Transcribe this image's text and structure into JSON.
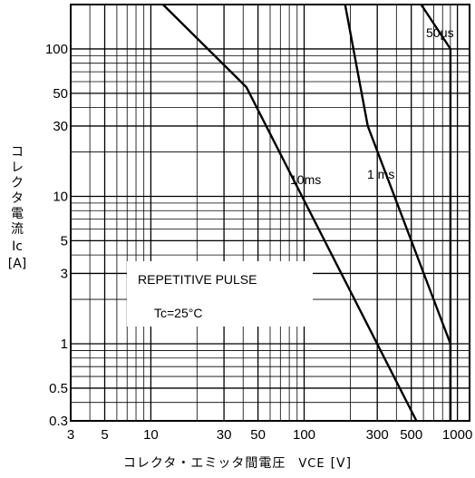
{
  "chart_data": {
    "type": "line",
    "x_scale": "log",
    "y_scale": "log",
    "xlim": [
      3,
      1200
    ],
    "ylim": [
      0.3,
      200
    ],
    "x_ticks": [
      3,
      5,
      10,
      30,
      50,
      100,
      300,
      500,
      1000
    ],
    "y_ticks": [
      0.3,
      0.5,
      1,
      3,
      5,
      10,
      30,
      50,
      100
    ],
    "x_tick_labels": [
      "3",
      "5",
      "10",
      "30",
      "50",
      "100",
      "300",
      "500",
      "1000"
    ],
    "y_tick_labels": [
      "0.3",
      "0.5",
      "1",
      "3",
      "5",
      "10",
      "30",
      "50",
      "100"
    ],
    "xlabel": "コレクタ・エミッタ間電圧",
    "xlabel_symbol": "VCE",
    "xlabel_unit": "[V]",
    "ylabel": "コレクタ電流",
    "ylabel_symbol": "Ic",
    "ylabel_unit": "[A]",
    "grid": true,
    "series": [
      {
        "name": "50μs",
        "points": [
          [
            580,
            200
          ],
          [
            900,
            100
          ],
          [
            900,
            0.3
          ]
        ]
      },
      {
        "name": "1 ms",
        "points": [
          [
            185,
            200
          ],
          [
            260,
            30
          ],
          [
            900,
            1
          ],
          [
            900,
            0.3
          ]
        ]
      },
      {
        "name": "10ms",
        "points": [
          [
            12,
            200
          ],
          [
            42,
            55
          ],
          [
            540,
            0.3
          ]
        ]
      }
    ],
    "annotations": [
      "REPETITIVE PULSE",
      "Tc=25°C"
    ]
  }
}
